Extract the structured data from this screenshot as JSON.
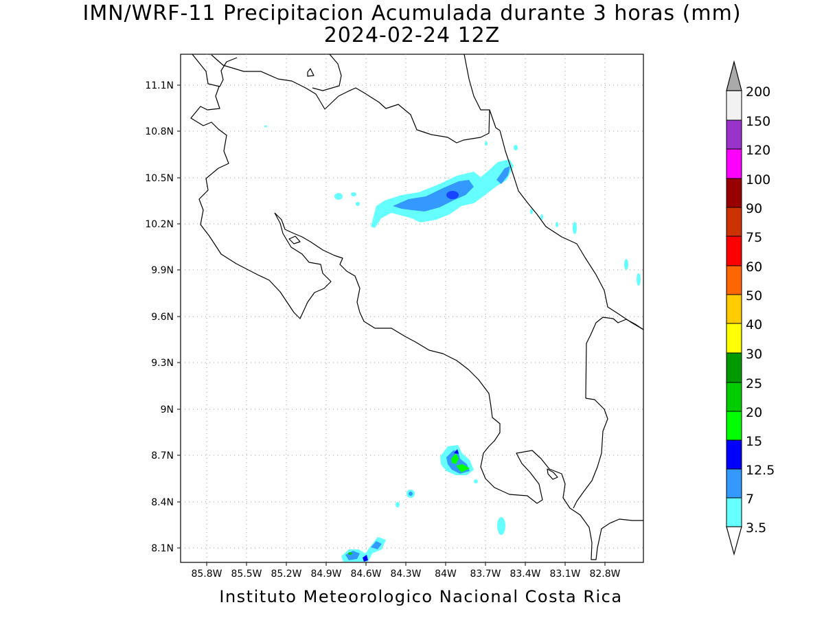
{
  "title": {
    "line1": "IMN/WRF-11 Precipitacion Acumulada durante 3 horas (mm)",
    "line2": "2024-02-24 12Z"
  },
  "footer": "Instituto Meteorologico Nacional Costa Rica",
  "map": {
    "lon_labels": [
      "85.8W",
      "85.5W",
      "85.2W",
      "84.9W",
      "84.6W",
      "84.3W",
      "84W",
      "83.7W",
      "83.4W",
      "83.1W",
      "82.8W"
    ],
    "lat_labels": [
      "11.1N",
      "10.8N",
      "10.5N",
      "10.2N",
      "9.9N",
      "9.6N",
      "9.3N",
      "9N",
      "8.7N",
      "8.4N",
      "8.1N"
    ],
    "grid": "dotted"
  },
  "colorbar": {
    "labels": [
      "3.5",
      "7",
      "12.5",
      "15",
      "20",
      "25",
      "30",
      "40",
      "50",
      "60",
      "75",
      "90",
      "100",
      "120",
      "150",
      "200"
    ],
    "colors": [
      "#ffffff",
      "#66ffff",
      "#3399ff",
      "#0000ff",
      "#00ff00",
      "#00cc00",
      "#009900",
      "#ffff00",
      "#ffcc00",
      "#ff6600",
      "#ff0000",
      "#cc3300",
      "#990000",
      "#ff00ff",
      "#9933cc",
      "#f2f2f2",
      "#aaaaaa"
    ]
  }
}
